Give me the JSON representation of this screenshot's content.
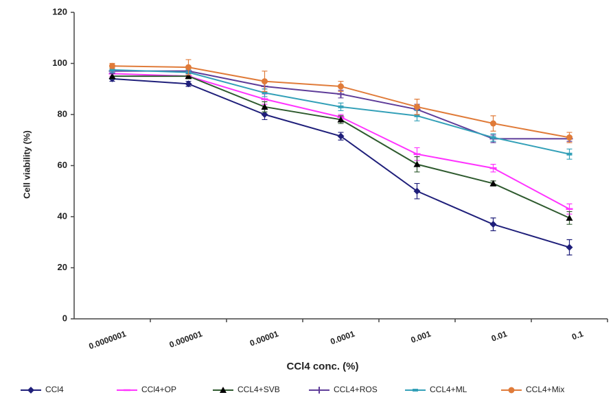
{
  "chart_data": {
    "type": "line",
    "x_label": "CCl4 conc. (%)",
    "y_label": "Cell viability (%)",
    "categories": [
      "0.0000001",
      "0.000001",
      "0.00001",
      "0.0001",
      "0.001",
      "0.01",
      "0.1"
    ],
    "ylim": [
      0,
      120
    ],
    "yticks": [
      0,
      20,
      40,
      60,
      80,
      100,
      120
    ],
    "series": [
      {
        "name": "CCl4",
        "color": "#1f1f7a",
        "marker": "diamond",
        "values": [
          94,
          92,
          80,
          71.5,
          50,
          37,
          28
        ],
        "errors": [
          1,
          1,
          2,
          1.5,
          3,
          2.5,
          3
        ]
      },
      {
        "name": "CCl4+OP",
        "color": "#ff33ff",
        "marker": "dash",
        "values": [
          96,
          95,
          86,
          79,
          64.5,
          59,
          43
        ],
        "errors": [
          1,
          1,
          2,
          1,
          2.5,
          1.5,
          2
        ]
      },
      {
        "name": "CCL4+SVB",
        "color": "#2e5a2e",
        "marker": "triangle",
        "values": [
          95,
          95,
          83,
          78,
          60.5,
          53,
          39.5
        ],
        "errors": [
          1,
          1,
          2,
          1.5,
          3,
          1,
          2.5
        ]
      },
      {
        "name": "CCL4+ROS",
        "color": "#5e3c99",
        "marker": "plus",
        "values": [
          97,
          97,
          91,
          88,
          82,
          70.5,
          70.5
        ],
        "errors": [
          1,
          1,
          2,
          1.5,
          2,
          1.5,
          1
        ]
      },
      {
        "name": "CCL4+ML",
        "color": "#33a0b8",
        "marker": "square",
        "values": [
          97.5,
          96.5,
          88.5,
          83,
          79.5,
          71,
          64.5
        ],
        "errors": [
          1,
          1,
          1.5,
          1.5,
          2,
          1.5,
          2
        ]
      },
      {
        "name": "CCL4+Mix",
        "color": "#e07b39",
        "marker": "circle",
        "values": [
          99,
          98.5,
          93,
          91,
          83,
          76.5,
          71
        ],
        "errors": [
          1,
          3,
          4,
          2,
          3,
          3,
          2
        ]
      }
    ]
  }
}
